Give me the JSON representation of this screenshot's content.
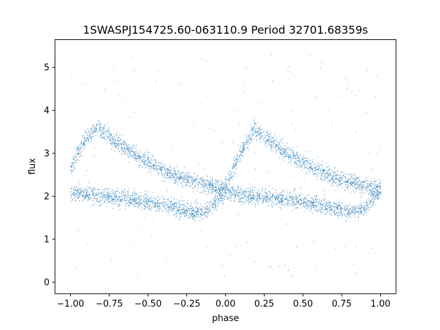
{
  "chart_data": {
    "type": "scatter",
    "title": "1SWASPJ154725.60-063110.9 Period 32701.68359s",
    "xlabel": "phase",
    "ylabel": "flux",
    "xlim": [
      -1.1,
      1.1
    ],
    "ylim": [
      -0.27,
      5.65
    ],
    "xticks": [
      -1.0,
      -0.75,
      -0.5,
      -0.25,
      0.0,
      0.25,
      0.5,
      0.75,
      1.0
    ],
    "xtick_labels": [
      "−1.00",
      "−0.75",
      "−0.50",
      "−0.25",
      "0.00",
      "0.25",
      "0.50",
      "0.75",
      "1.00"
    ],
    "yticks": [
      0,
      1,
      2,
      3,
      4,
      5
    ],
    "ytick_labels": [
      "0",
      "1",
      "2",
      "3",
      "4",
      "5"
    ],
    "grid": false,
    "marker_color": "#1f77b4",
    "series": [
      {
        "branch": "upper",
        "x": [
          -1.0,
          -0.95,
          -0.9,
          -0.85,
          -0.82,
          -0.75,
          -0.7,
          -0.6,
          -0.5,
          -0.4,
          -0.3,
          -0.2,
          -0.1,
          -0.05,
          0.0,
          0.05,
          0.1,
          0.15,
          0.18,
          0.25,
          0.3,
          0.4,
          0.5,
          0.6,
          0.7,
          0.8,
          0.9,
          0.95,
          1.0
        ],
        "y": [
          2.7,
          3.05,
          3.35,
          3.55,
          3.6,
          3.4,
          3.25,
          3.0,
          2.8,
          2.6,
          2.45,
          2.35,
          2.25,
          2.2,
          2.2,
          2.7,
          3.05,
          3.35,
          3.6,
          3.4,
          3.25,
          3.0,
          2.8,
          2.6,
          2.45,
          2.35,
          2.25,
          2.2,
          2.2
        ]
      },
      {
        "branch": "lower",
        "x": [
          -1.0,
          -0.9,
          -0.8,
          -0.7,
          -0.6,
          -0.5,
          -0.4,
          -0.3,
          -0.2,
          -0.15,
          -0.1,
          -0.05,
          0.0,
          0.1,
          0.2,
          0.3,
          0.4,
          0.5,
          0.6,
          0.7,
          0.8,
          0.85,
          0.9,
          0.95,
          1.0
        ],
        "y": [
          2.1,
          2.05,
          2.0,
          1.97,
          1.93,
          1.88,
          1.8,
          1.72,
          1.65,
          1.65,
          1.75,
          1.95,
          2.1,
          2.05,
          2.0,
          1.97,
          1.93,
          1.88,
          1.8,
          1.72,
          1.65,
          1.65,
          1.75,
          1.95,
          2.1
        ]
      }
    ]
  }
}
